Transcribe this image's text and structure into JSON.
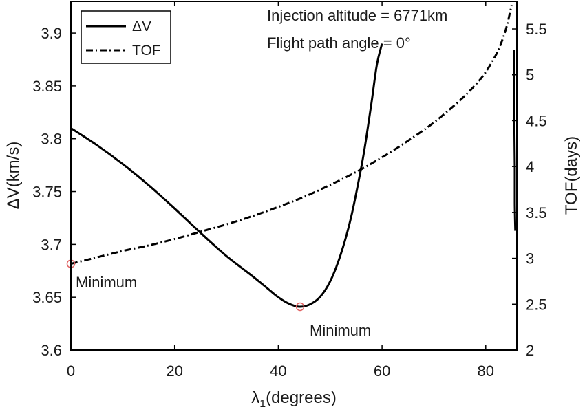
{
  "chart_data": {
    "type": "line",
    "title": "",
    "xlabel": "λ1(degrees)",
    "xlabel_main": "λ",
    "xlabel_sub": "1",
    "xlabel_rest": "(degrees)",
    "ylabel": "ΔV(km/s)",
    "y2label": "TOF(days)",
    "xlim": [
      0,
      86
    ],
    "ylim": [
      3.6,
      3.93
    ],
    "y2lim": [
      2,
      5.8
    ],
    "xticks": [
      0,
      20,
      40,
      60,
      80
    ],
    "yticks": [
      3.6,
      3.65,
      3.7,
      3.75,
      3.8,
      3.85,
      3.9
    ],
    "y2ticks": [
      2,
      2.5,
      3,
      3.5,
      4,
      4.5,
      5,
      5.5
    ],
    "xtick_labels": [
      "0",
      "20",
      "40",
      "60",
      "80"
    ],
    "ytick_labels": [
      "3.6",
      "3.65",
      "3.7",
      "3.75",
      "3.8",
      "3.85",
      "3.9"
    ],
    "y2tick_labels": [
      "2",
      "2.5",
      "3",
      "3.5",
      "4",
      "4.5",
      "5",
      "5.5"
    ],
    "grid": false,
    "legend": {
      "location": "top-left",
      "entries": [
        {
          "label": "ΔV",
          "style": "solid"
        },
        {
          "label": "TOF",
          "style": "dash-dot"
        }
      ]
    },
    "annotations": [
      {
        "text": "Injection altitude = 6771km"
      },
      {
        "text": "Flight path angle = 0°"
      },
      {
        "text": "Minimum",
        "series": "TOF",
        "x": 0,
        "y": 2.94
      },
      {
        "text": "Minimum",
        "series": "ΔV",
        "x": 44.2,
        "y": 3.641
      }
    ],
    "series": [
      {
        "name": "ΔV",
        "axis": "left",
        "style": "solid",
        "color": "#000000",
        "x": [
          0,
          5,
          10,
          15,
          20,
          25,
          30,
          35,
          38,
          40,
          42,
          44,
          46,
          48,
          50,
          52,
          54,
          56,
          57,
          58,
          59,
          60
        ],
        "y": [
          3.81,
          3.794,
          3.776,
          3.756,
          3.734,
          3.711,
          3.689,
          3.67,
          3.658,
          3.65,
          3.644,
          3.641,
          3.643,
          3.65,
          3.665,
          3.69,
          3.725,
          3.773,
          3.802,
          3.835,
          3.87,
          3.89
        ]
      },
      {
        "name": "TOF",
        "axis": "right",
        "style": "dash-dot",
        "color": "#000000",
        "x": [
          0,
          5,
          10,
          15,
          20,
          25,
          30,
          35,
          40,
          45,
          50,
          55,
          60,
          65,
          70,
          75,
          78,
          80,
          82,
          83,
          84,
          85
        ],
        "y": [
          2.94,
          3.01,
          3.08,
          3.14,
          3.21,
          3.29,
          3.37,
          3.46,
          3.56,
          3.67,
          3.8,
          3.94,
          4.1,
          4.28,
          4.48,
          4.72,
          4.89,
          5.03,
          5.22,
          5.35,
          5.52,
          5.76
        ]
      },
      {
        "name": "TOF-branch",
        "axis": "right",
        "style": "solid",
        "color": "#000000",
        "x": [
          85.5,
          85.5,
          85.6,
          85.6,
          85.7
        ],
        "y": [
          5.27,
          4.6,
          4.0,
          3.6,
          3.3
        ]
      }
    ],
    "markers": [
      {
        "series": "TOF",
        "axis": "right",
        "x": 0,
        "y": 2.94,
        "color": "#e06060"
      },
      {
        "series": "ΔV",
        "axis": "left",
        "x": 44.2,
        "y": 3.641,
        "color": "#e06060"
      }
    ]
  }
}
